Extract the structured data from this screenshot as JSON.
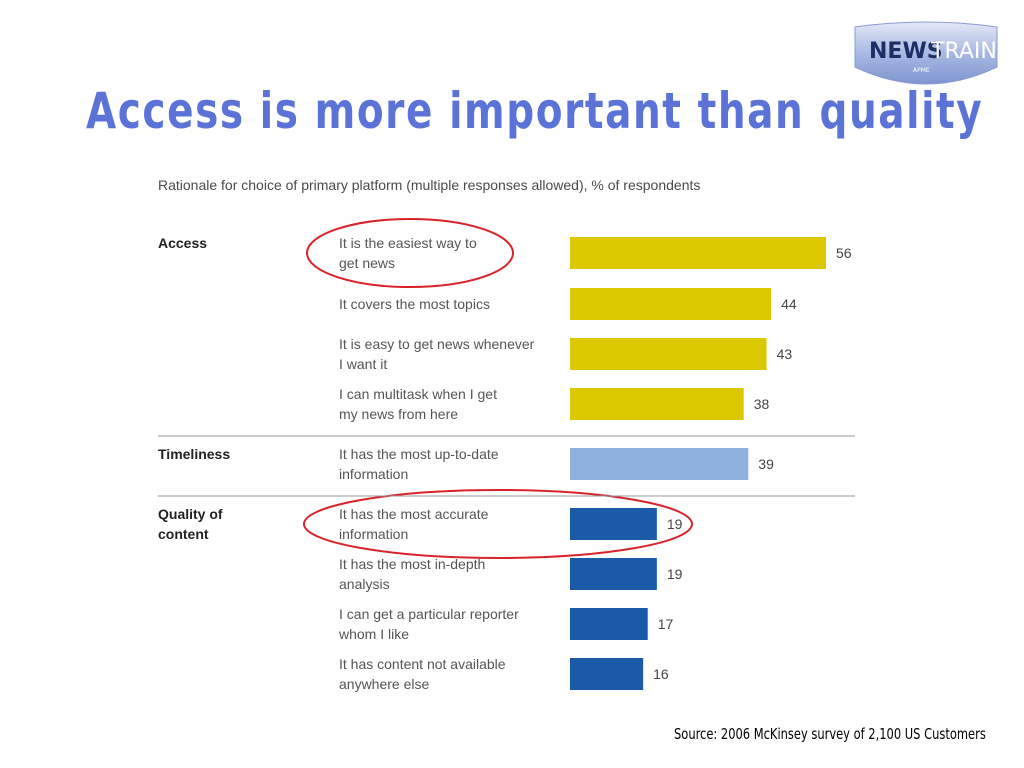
{
  "slide": {
    "title": "Access is more important than quality",
    "source": "Source: 2006 McKinsey survey of 2,100 US Customers"
  },
  "logo": {
    "text_news": "NEWS",
    "text_train": "TRAIN",
    "text_sub": "APME"
  },
  "colors": {
    "title": "#5b73d6",
    "access": "#dcc800",
    "timeliness": "#8db0dd",
    "quality": "#1a5aa8",
    "highlight": "#d9232a"
  },
  "chart_data": {
    "type": "bar",
    "orientation": "horizontal",
    "title": "Rationale for choice of primary platform (multiple responses allowed), % of respondents",
    "groups": [
      {
        "name": "Access",
        "color": "#dcc800",
        "items": [
          {
            "label_lines": [
              "It is the easiest way to",
              "get news"
            ],
            "value": 56,
            "circled": true
          },
          {
            "label_lines": [
              "It covers the most topics"
            ],
            "value": 44
          },
          {
            "label_lines": [
              "It is easy to get news whenever",
              "I want it"
            ],
            "value": 43
          },
          {
            "label_lines": [
              "I can multitask when I get",
              "my news from here"
            ],
            "value": 38
          }
        ]
      },
      {
        "name": "Timeliness",
        "color": "#8db0dd",
        "items": [
          {
            "label_lines": [
              "It has the most up-to-date",
              "information"
            ],
            "value": 39
          }
        ]
      },
      {
        "name_lines": [
          "Quality of",
          "content"
        ],
        "name": "Quality of content",
        "color": "#1a5aa8",
        "items": [
          {
            "label_lines": [
              "It has the most accurate",
              "information"
            ],
            "value": 19,
            "circled": true
          },
          {
            "label_lines": [
              "It has the most in-depth",
              "analysis"
            ],
            "value": 19
          },
          {
            "label_lines": [
              "I can get a particular reporter",
              "whom I like"
            ],
            "value": 17
          },
          {
            "label_lines": [
              "It has content not available",
              "anywhere else"
            ],
            "value": 16
          }
        ]
      }
    ],
    "xlim": [
      0,
      56
    ],
    "grid": false
  }
}
